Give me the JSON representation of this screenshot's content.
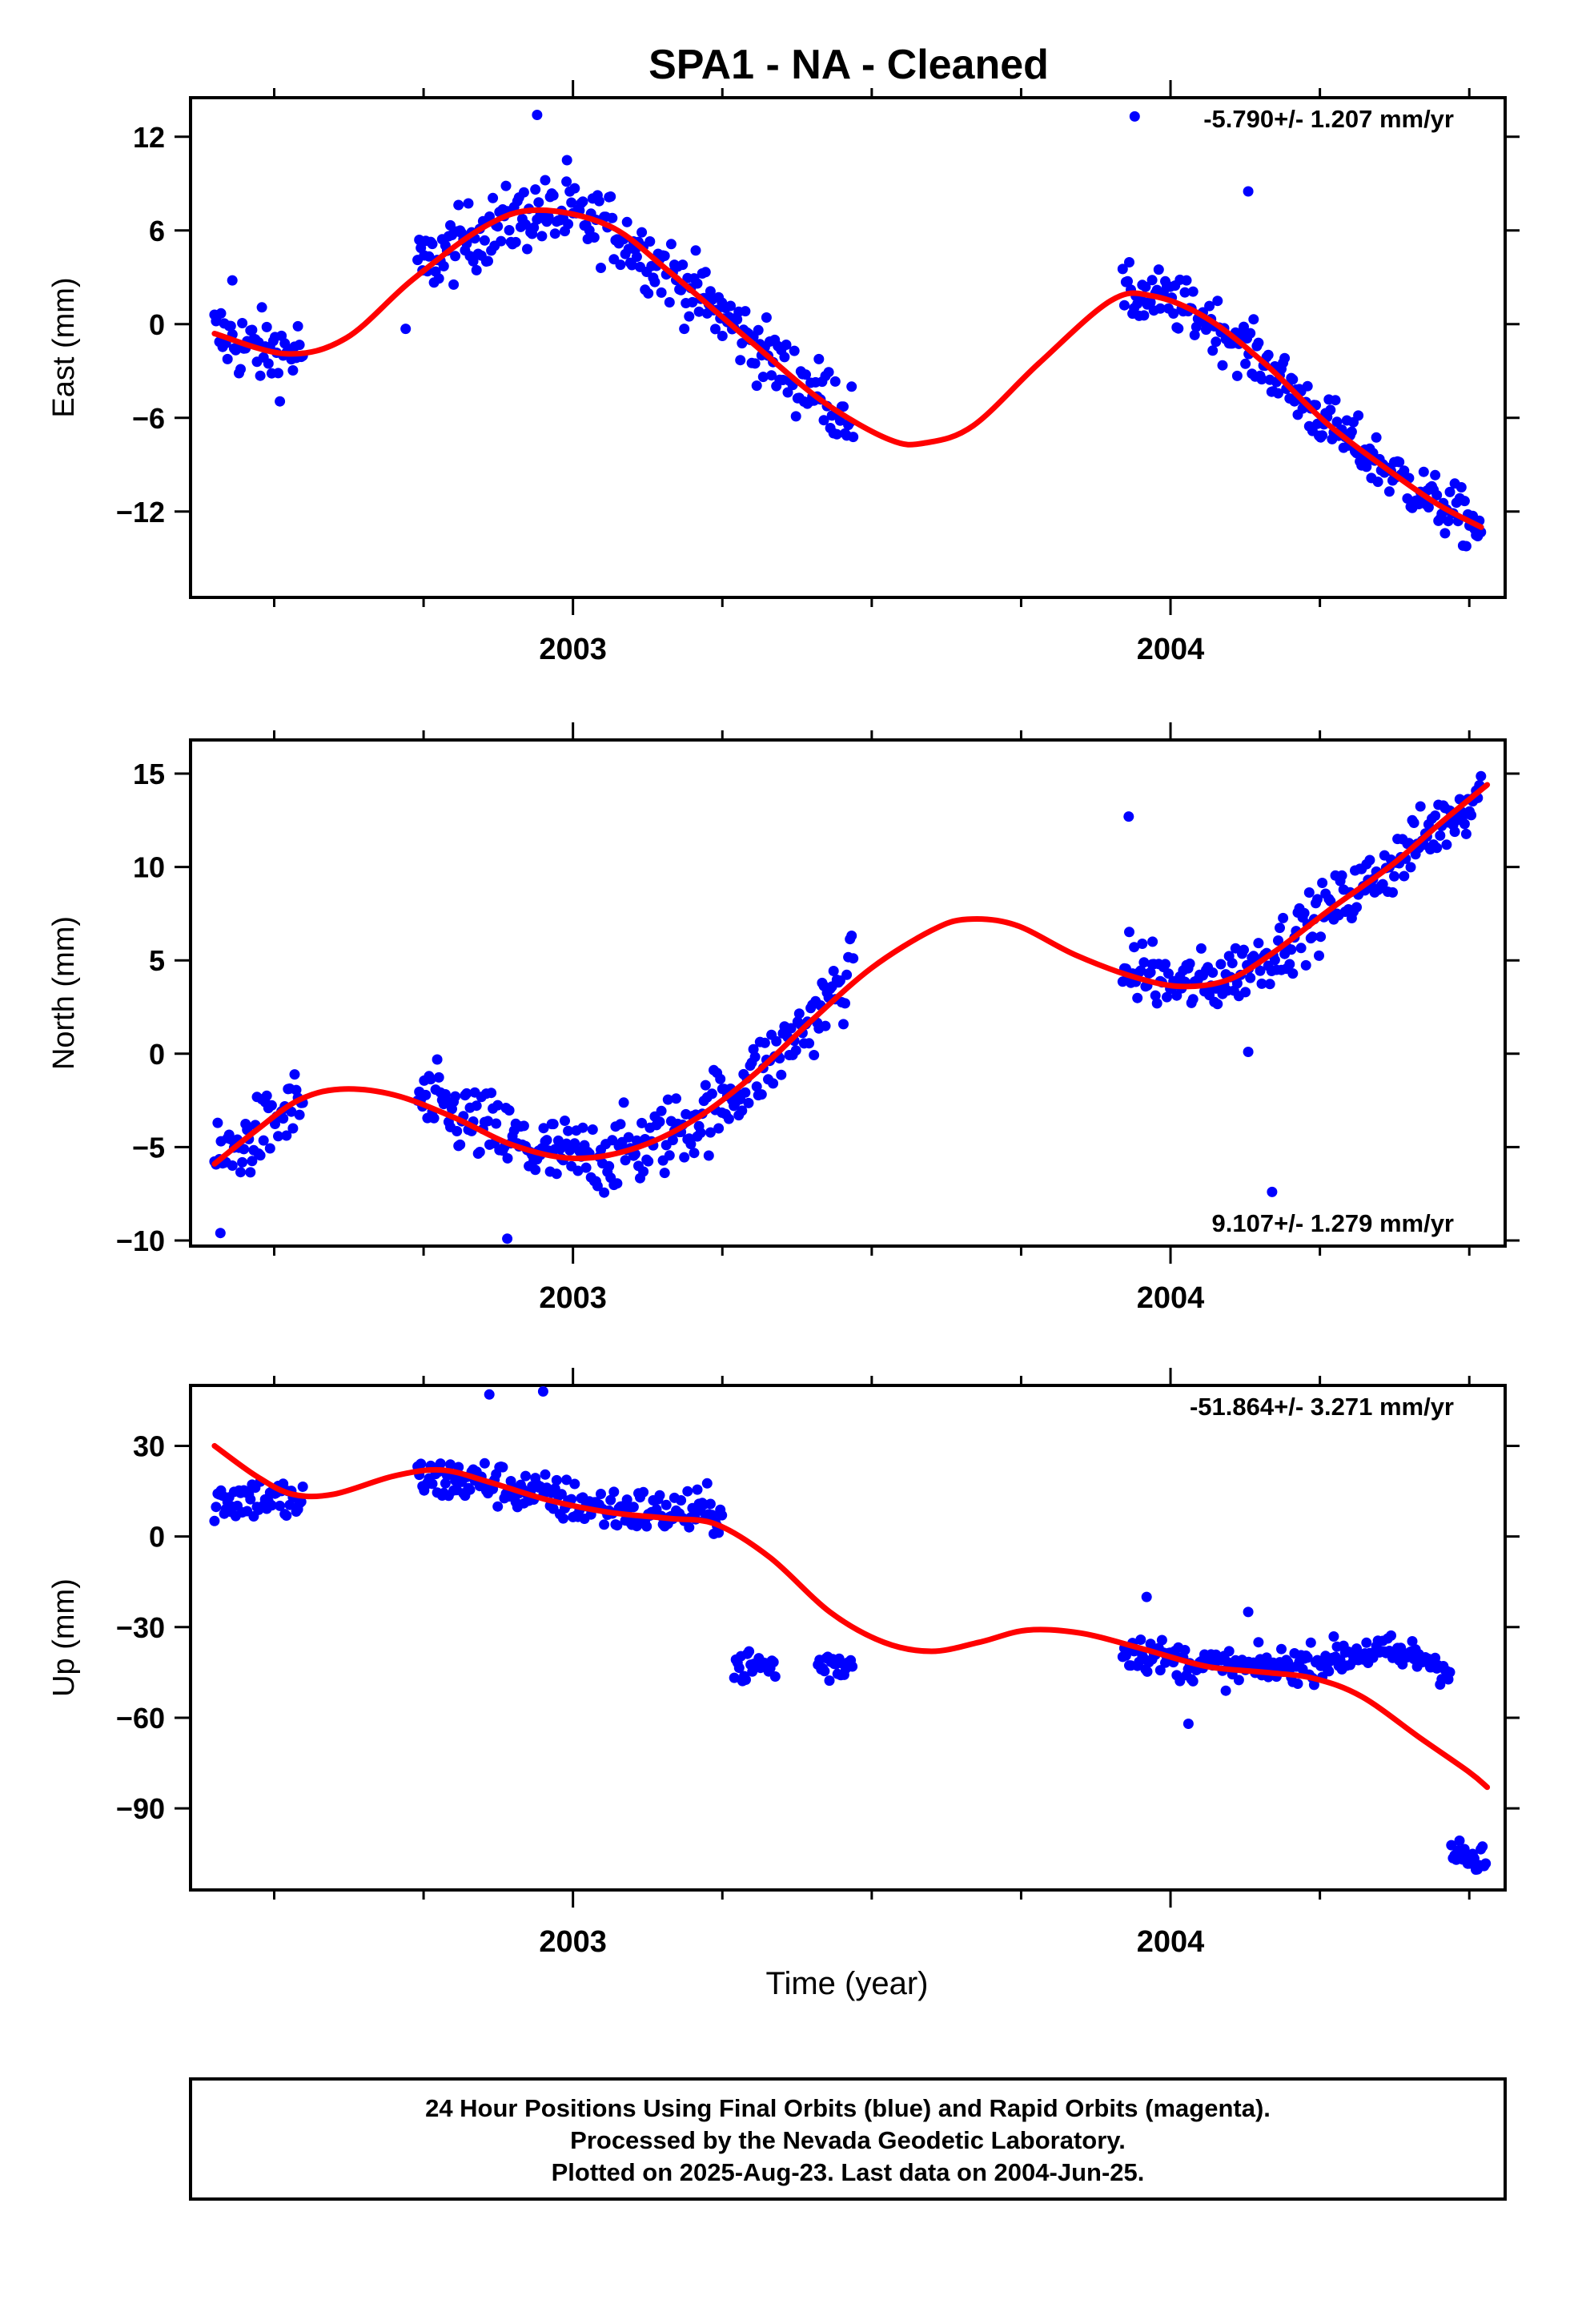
{
  "chart_data": {
    "type": "scatter",
    "title": "SPA1  - NA - Cleaned",
    "x_axis": {
      "label": "Time (year)",
      "range": [
        2002.36,
        2004.56
      ],
      "tick_labels": [
        {
          "year": 2003,
          "label": "2003"
        },
        {
          "year": 2004,
          "label": "2004"
        }
      ]
    },
    "colors": {
      "points": "#0000ff",
      "fit": "#ff0000",
      "frame": "#000000"
    },
    "panels": [
      {
        "name": "east",
        "ylabel": "East (mm)",
        "ylim": [
          -17.5,
          14.5
        ],
        "yticks": [
          12,
          6,
          0,
          -6,
          -12
        ],
        "rate_label": "-5.790+/- 1.207 mm/yr",
        "rate_position": "top-right",
        "segments": [
          {
            "start": 2002.4,
            "end": 2002.55,
            "fit": [
              [
                2002.4,
                -0.6
              ],
              [
                2002.46,
                -1.5
              ],
              [
                2002.52,
                -1.9
              ],
              [
                2002.55,
                -1.6
              ]
            ],
            "noise": 1.6
          },
          {
            "start": 2002.74,
            "end": 2003.25,
            "fit": [
              [
                2002.74,
                3.5
              ],
              [
                2002.83,
                5.6
              ],
              [
                2002.94,
                7.2
              ],
              [
                2003.06,
                6.3
              ],
              [
                2003.16,
                3.4
              ],
              [
                2003.25,
                0.6
              ]
            ],
            "noise": 1.5
          },
          {
            "start": 2003.25,
            "end": 2003.47,
            "fit": [
              [
                2003.25,
                0.6
              ],
              [
                2003.36,
                -3.2
              ],
              [
                2003.47,
                -5.8
              ]
            ],
            "noise": 1.5
          },
          {
            "start": 2003.92,
            "end": 2004.52,
            "fit": [
              [
                2003.92,
                1.8
              ],
              [
                2003.98,
                1.7
              ],
              [
                2004.06,
                0.4
              ],
              [
                2004.16,
                -2.6
              ],
              [
                2004.26,
                -6.3
              ],
              [
                2004.37,
                -9.5
              ],
              [
                2004.45,
                -11.6
              ],
              [
                2004.52,
                -13.0
              ]
            ],
            "noise": 1.2
          }
        ],
        "outliers": [
          [
            2003.94,
            13.3
          ],
          [
            2002.94,
            13.4
          ],
          [
            2004.13,
            8.5
          ],
          [
            2002.99,
            10.5
          ],
          [
            2002.43,
            2.8
          ],
          [
            2002.72,
            -0.3
          ]
        ],
        "fit_curve": [
          [
            2002.4,
            -0.6
          ],
          [
            2002.52,
            -1.9
          ],
          [
            2002.62,
            -0.9
          ],
          [
            2002.73,
            2.8
          ],
          [
            2002.85,
            6.2
          ],
          [
            2002.94,
            7.3
          ],
          [
            2003.06,
            6.3
          ],
          [
            2003.16,
            3.4
          ],
          [
            2003.3,
            -1.2
          ],
          [
            2003.42,
            -5.0
          ],
          [
            2003.53,
            -7.4
          ],
          [
            2003.59,
            -7.6
          ],
          [
            2003.67,
            -6.5
          ],
          [
            2003.78,
            -2.5
          ],
          [
            2003.9,
            1.5
          ],
          [
            2003.97,
            1.8
          ],
          [
            2004.06,
            0.4
          ],
          [
            2004.16,
            -2.6
          ],
          [
            2004.26,
            -6.3
          ],
          [
            2004.37,
            -9.5
          ],
          [
            2004.45,
            -11.6
          ],
          [
            2004.52,
            -13.0
          ]
        ]
      },
      {
        "name": "north",
        "ylabel": "North (mm)",
        "ylim": [
          -10.3,
          16.8
        ],
        "yticks": [
          15,
          10,
          5,
          0,
          -5,
          -10
        ],
        "rate_label": "9.107+/- 1.279 mm/yr",
        "rate_position": "bottom-right",
        "segments": [
          {
            "start": 2002.4,
            "end": 2002.55,
            "fit": [
              [
                2002.4,
                -5.9
              ],
              [
                2002.46,
                -4.6
              ],
              [
                2002.52,
                -3.2
              ],
              [
                2002.55,
                -2.6
              ]
            ],
            "noise": 1.3
          },
          {
            "start": 2002.74,
            "end": 2003.25,
            "fit": [
              [
                2002.74,
                -2.4
              ],
              [
                2002.84,
                -3.8
              ],
              [
                2002.94,
                -5.3
              ],
              [
                2003.02,
                -5.6
              ],
              [
                2003.12,
                -5.0
              ],
              [
                2003.2,
                -3.6
              ],
              [
                2003.25,
                -2.6
              ]
            ],
            "noise": 1.4
          },
          {
            "start": 2003.25,
            "end": 2003.47,
            "fit": [
              [
                2003.25,
                -2.6
              ],
              [
                2003.33,
                -0.4
              ],
              [
                2003.4,
                1.8
              ],
              [
                2003.47,
                4.5
              ]
            ],
            "noise": 1.3
          },
          {
            "start": 2003.92,
            "end": 2004.52,
            "fit": [
              [
                2003.92,
                4.8
              ],
              [
                2004.0,
                3.7
              ],
              [
                2004.08,
                3.9
              ],
              [
                2004.17,
                5.4
              ],
              [
                2004.27,
                7.8
              ],
              [
                2004.37,
                10.1
              ],
              [
                2004.45,
                12.3
              ],
              [
                2004.52,
                14.0
              ]
            ],
            "noise": 1.1
          }
        ],
        "outliers": [
          [
            2003.93,
            12.7
          ],
          [
            2004.13,
            0.1
          ],
          [
            2004.17,
            -7.4
          ],
          [
            2002.41,
            -9.6
          ],
          [
            2002.89,
            -9.9
          ],
          [
            2003.97,
            6.0
          ]
        ],
        "fit_curve": [
          [
            2002.4,
            -5.9
          ],
          [
            2002.47,
            -4.1
          ],
          [
            2002.54,
            -2.5
          ],
          [
            2002.61,
            -1.9
          ],
          [
            2002.7,
            -2.2
          ],
          [
            2002.8,
            -3.4
          ],
          [
            2002.9,
            -4.9
          ],
          [
            2003.0,
            -5.6
          ],
          [
            2003.1,
            -5.1
          ],
          [
            2003.2,
            -3.6
          ],
          [
            2003.3,
            -1.2
          ],
          [
            2003.4,
            1.8
          ],
          [
            2003.5,
            4.6
          ],
          [
            2003.6,
            6.6
          ],
          [
            2003.66,
            7.2
          ],
          [
            2003.74,
            6.9
          ],
          [
            2003.84,
            5.3
          ],
          [
            2003.94,
            4.1
          ],
          [
            2004.02,
            3.6
          ],
          [
            2004.1,
            4.0
          ],
          [
            2004.18,
            5.6
          ],
          [
            2004.27,
            7.8
          ],
          [
            2004.37,
            10.1
          ],
          [
            2004.45,
            12.3
          ],
          [
            2004.53,
            14.4
          ]
        ]
      },
      {
        "name": "up",
        "ylabel": "Up (mm)",
        "ylim": [
          -117,
          50
        ],
        "yticks": [
          30,
          0,
          -30,
          -60,
          -90
        ],
        "rate_label": "-51.864+/- 3.271 mm/yr",
        "rate_position": "top-right",
        "segments": [
          {
            "start": 2002.4,
            "end": 2002.55,
            "fit": [
              [
                2002.4,
                12
              ],
              [
                2002.47,
                13
              ],
              [
                2002.55,
                11
              ]
            ],
            "noise": 5
          },
          {
            "start": 2002.74,
            "end": 2003.25,
            "fit": [
              [
                2002.74,
                19
              ],
              [
                2002.86,
                18
              ],
              [
                2002.96,
                13
              ],
              [
                2003.06,
                9
              ],
              [
                2003.16,
                8
              ],
              [
                2003.25,
                8
              ]
            ],
            "noise": 5
          },
          {
            "start": 2003.27,
            "end": 2003.34,
            "fit": [
              [
                2003.27,
                -43
              ],
              [
                2003.34,
                -43
              ]
            ],
            "noise": 4
          },
          {
            "start": 2003.41,
            "end": 2003.47,
            "fit": [
              [
                2003.41,
                -43
              ],
              [
                2003.47,
                -42
              ]
            ],
            "noise": 4
          },
          {
            "start": 2003.92,
            "end": 2004.47,
            "fit": [
              [
                2003.92,
                -37
              ],
              [
                2004.03,
                -42
              ],
              [
                2004.13,
                -44
              ],
              [
                2004.23,
                -42
              ],
              [
                2004.33,
                -38
              ],
              [
                2004.42,
                -40
              ],
              [
                2004.47,
                -44
              ]
            ],
            "noise": 4
          },
          {
            "start": 2004.47,
            "end": 2004.53,
            "fit": [
              [
                2004.47,
                -105
              ],
              [
                2004.53,
                -109
              ]
            ],
            "noise": 4
          }
        ],
        "outliers": [
          [
            2002.86,
            47
          ],
          [
            2002.95,
            48
          ],
          [
            2004.03,
            -62
          ],
          [
            2004.13,
            -25
          ],
          [
            2003.96,
            -20
          ]
        ],
        "fit_curve": [
          [
            2002.4,
            30
          ],
          [
            2002.47,
            20
          ],
          [
            2002.53,
            14
          ],
          [
            2002.6,
            14
          ],
          [
            2002.7,
            20
          ],
          [
            2002.78,
            22
          ],
          [
            2002.86,
            18
          ],
          [
            2002.96,
            12
          ],
          [
            2003.06,
            8
          ],
          [
            2003.16,
            6
          ],
          [
            2003.24,
            4
          ],
          [
            2003.33,
            -7
          ],
          [
            2003.43,
            -25
          ],
          [
            2003.52,
            -35
          ],
          [
            2003.6,
            -38
          ],
          [
            2003.68,
            -35
          ],
          [
            2003.76,
            -31
          ],
          [
            2003.85,
            -32
          ],
          [
            2003.95,
            -37
          ],
          [
            2004.06,
            -43
          ],
          [
            2004.16,
            -45
          ],
          [
            2004.24,
            -47
          ],
          [
            2004.32,
            -53
          ],
          [
            2004.42,
            -67
          ],
          [
            2004.5,
            -78
          ],
          [
            2004.53,
            -83
          ]
        ]
      }
    ],
    "footer": [
      "24 Hour Positions Using Final Orbits (blue) and Rapid Orbits (magenta).",
      "Processed by the Nevada Geodetic Laboratory.",
      "Plotted on 2025-Aug-23. Last data on 2004-Jun-25."
    ]
  }
}
